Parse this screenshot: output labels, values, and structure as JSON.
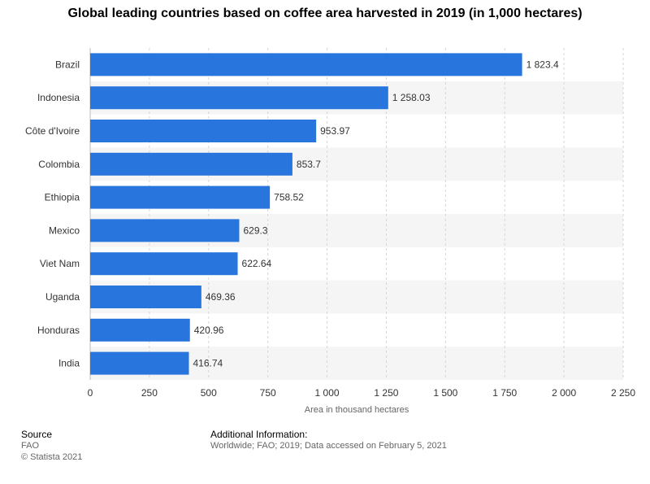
{
  "chart_data": {
    "type": "bar",
    "orientation": "horizontal",
    "title": "Global leading countries based on coffee area harvested in 2019 (in 1,000 hectares)",
    "xlabel": "Area in thousand hectares",
    "ylabel": "",
    "categories": [
      "Brazil",
      "Indonesia",
      "Côte d'Ivoire",
      "Colombia",
      "Ethiopia",
      "Mexico",
      "Viet Nam",
      "Uganda",
      "Honduras",
      "India"
    ],
    "values": [
      1823.4,
      1258.03,
      953.97,
      853.7,
      758.52,
      629.3,
      622.64,
      469.36,
      420.96,
      416.74
    ],
    "value_labels": [
      "1 823.4",
      "1 258.03",
      "953.97",
      "853.7",
      "758.52",
      "629.3",
      "622.64",
      "469.36",
      "420.96",
      "416.74"
    ],
    "xlim": [
      0,
      2250
    ],
    "xticks": [
      0,
      250,
      500,
      750,
      1000,
      1250,
      1500,
      1750,
      2000,
      2250
    ],
    "xtick_labels": [
      "0",
      "250",
      "500",
      "750",
      "1 000",
      "1 250",
      "1 500",
      "1 750",
      "2 000",
      "2 250"
    ],
    "grid": true,
    "bar_color": "#2876dd",
    "band_color": "#f5f5f5"
  },
  "footer": {
    "source_heading": "Source",
    "source_name": "FAO",
    "copyright": "© Statista 2021",
    "info_heading": "Additional Information:",
    "info_text": "Worldwide; FAO; 2019; Data accessed on February 5, 2021"
  }
}
